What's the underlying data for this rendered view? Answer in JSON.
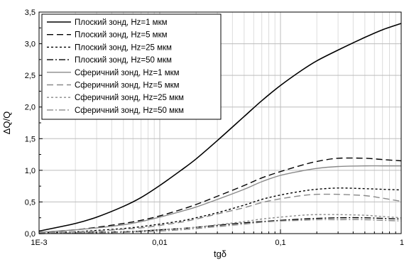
{
  "chart_data": {
    "type": "line",
    "xlabel": "tgδ",
    "ylabel": "ΔQ/Q",
    "xscale": "log",
    "xlim": [
      0.001,
      1
    ],
    "ylim": [
      0,
      3.5
    ],
    "grid": true,
    "legend_position": "top-left",
    "x_ticks": [
      {
        "value": 0.001,
        "label": "1E-3"
      },
      {
        "value": 0.01,
        "label": "0,01"
      },
      {
        "value": 0.1,
        "label": "0,1"
      },
      {
        "value": 1,
        "label": "1"
      }
    ],
    "y_ticks": [
      {
        "value": 0.0,
        "label": "0,0"
      },
      {
        "value": 0.5,
        "label": "0,5"
      },
      {
        "value": 1.0,
        "label": "1,0"
      },
      {
        "value": 1.5,
        "label": "1,5"
      },
      {
        "value": 2.0,
        "label": "2,0"
      },
      {
        "value": 2.5,
        "label": "2,5"
      },
      {
        "value": 3.0,
        "label": "3,0"
      },
      {
        "value": 3.5,
        "label": "3,5"
      }
    ],
    "series": [
      {
        "name": "Плоский зонд, Hz=1 мкм",
        "color": "#000000",
        "dash": "solid",
        "x": [
          0.001,
          0.002,
          0.003,
          0.005,
          0.007,
          0.01,
          0.015,
          0.02,
          0.03,
          0.05,
          0.07,
          0.1,
          0.15,
          0.2,
          0.3,
          0.5,
          0.7,
          1.0
        ],
        "y": [
          0.04,
          0.16,
          0.26,
          0.43,
          0.57,
          0.76,
          1.0,
          1.18,
          1.47,
          1.85,
          2.1,
          2.34,
          2.58,
          2.73,
          2.9,
          3.1,
          3.22,
          3.32
        ]
      },
      {
        "name": "Плоский зонд, Hz=5 мкм",
        "color": "#000000",
        "dash": "long",
        "x": [
          0.001,
          0.002,
          0.003,
          0.005,
          0.007,
          0.01,
          0.015,
          0.02,
          0.03,
          0.05,
          0.07,
          0.1,
          0.15,
          0.2,
          0.3,
          0.5,
          0.7,
          1.0
        ],
        "y": [
          0.02,
          0.06,
          0.1,
          0.16,
          0.21,
          0.28,
          0.38,
          0.46,
          0.59,
          0.76,
          0.88,
          0.98,
          1.08,
          1.14,
          1.19,
          1.19,
          1.17,
          1.15
        ]
      },
      {
        "name": "Плоский зонд, Hz=25 мкм",
        "color": "#000000",
        "dash": "short",
        "x": [
          0.001,
          0.002,
          0.003,
          0.005,
          0.007,
          0.01,
          0.015,
          0.02,
          0.03,
          0.05,
          0.07,
          0.1,
          0.15,
          0.2,
          0.3,
          0.5,
          0.7,
          1.0
        ],
        "y": [
          0.01,
          0.03,
          0.05,
          0.08,
          0.11,
          0.15,
          0.2,
          0.25,
          0.33,
          0.45,
          0.54,
          0.61,
          0.67,
          0.7,
          0.72,
          0.71,
          0.7,
          0.69
        ]
      },
      {
        "name": "Плоский зонд, Hz=50 мкм",
        "color": "#000000",
        "dash": "dashdot",
        "x": [
          0.001,
          0.002,
          0.003,
          0.005,
          0.007,
          0.01,
          0.015,
          0.02,
          0.03,
          0.05,
          0.07,
          0.1,
          0.15,
          0.2,
          0.3,
          0.5,
          0.7,
          1.0
        ],
        "y": [
          0.0,
          0.01,
          0.02,
          0.03,
          0.04,
          0.06,
          0.08,
          0.1,
          0.13,
          0.17,
          0.19,
          0.21,
          0.23,
          0.24,
          0.25,
          0.25,
          0.24,
          0.23
        ]
      },
      {
        "name": "Сферичний зонд, Hz=1 мкм",
        "color": "#8a8a8a",
        "dash": "solid",
        "x": [
          0.001,
          0.002,
          0.003,
          0.005,
          0.007,
          0.01,
          0.015,
          0.02,
          0.03,
          0.05,
          0.07,
          0.1,
          0.15,
          0.2,
          0.3,
          0.5,
          0.7,
          1.0
        ],
        "y": [
          0.02,
          0.06,
          0.09,
          0.14,
          0.19,
          0.26,
          0.35,
          0.42,
          0.54,
          0.7,
          0.82,
          0.92,
          0.99,
          1.03,
          1.06,
          1.07,
          1.07,
          1.07
        ]
      },
      {
        "name": "Сферичний зонд, Hz=5 мкм",
        "color": "#8a8a8a",
        "dash": "long",
        "x": [
          0.001,
          0.002,
          0.003,
          0.005,
          0.007,
          0.01,
          0.015,
          0.02,
          0.03,
          0.05,
          0.07,
          0.1,
          0.15,
          0.2,
          0.3,
          0.5,
          0.7,
          1.0
        ],
        "y": [
          0.01,
          0.03,
          0.04,
          0.07,
          0.09,
          0.13,
          0.18,
          0.23,
          0.31,
          0.41,
          0.49,
          0.55,
          0.6,
          0.62,
          0.62,
          0.6,
          0.56,
          0.51
        ]
      },
      {
        "name": "Сферичний зонд, Hz=25 мкм",
        "color": "#8a8a8a",
        "dash": "short",
        "x": [
          0.001,
          0.002,
          0.003,
          0.005,
          0.007,
          0.01,
          0.015,
          0.02,
          0.03,
          0.05,
          0.07,
          0.1,
          0.15,
          0.2,
          0.3,
          0.5,
          0.7,
          1.0
        ],
        "y": [
          0.0,
          0.01,
          0.02,
          0.03,
          0.04,
          0.06,
          0.08,
          0.1,
          0.14,
          0.19,
          0.23,
          0.26,
          0.29,
          0.3,
          0.3,
          0.29,
          0.27,
          0.25
        ]
      },
      {
        "name": "Сферичний зонд, Hz=50 мкм",
        "color": "#8a8a8a",
        "dash": "dashdot",
        "x": [
          0.001,
          0.002,
          0.003,
          0.005,
          0.007,
          0.01,
          0.015,
          0.02,
          0.03,
          0.05,
          0.07,
          0.1,
          0.15,
          0.2,
          0.3,
          0.5,
          0.7,
          1.0
        ],
        "y": [
          0.0,
          0.01,
          0.01,
          0.02,
          0.03,
          0.04,
          0.06,
          0.08,
          0.11,
          0.15,
          0.18,
          0.2,
          0.21,
          0.22,
          0.22,
          0.22,
          0.21,
          0.2
        ]
      }
    ]
  }
}
